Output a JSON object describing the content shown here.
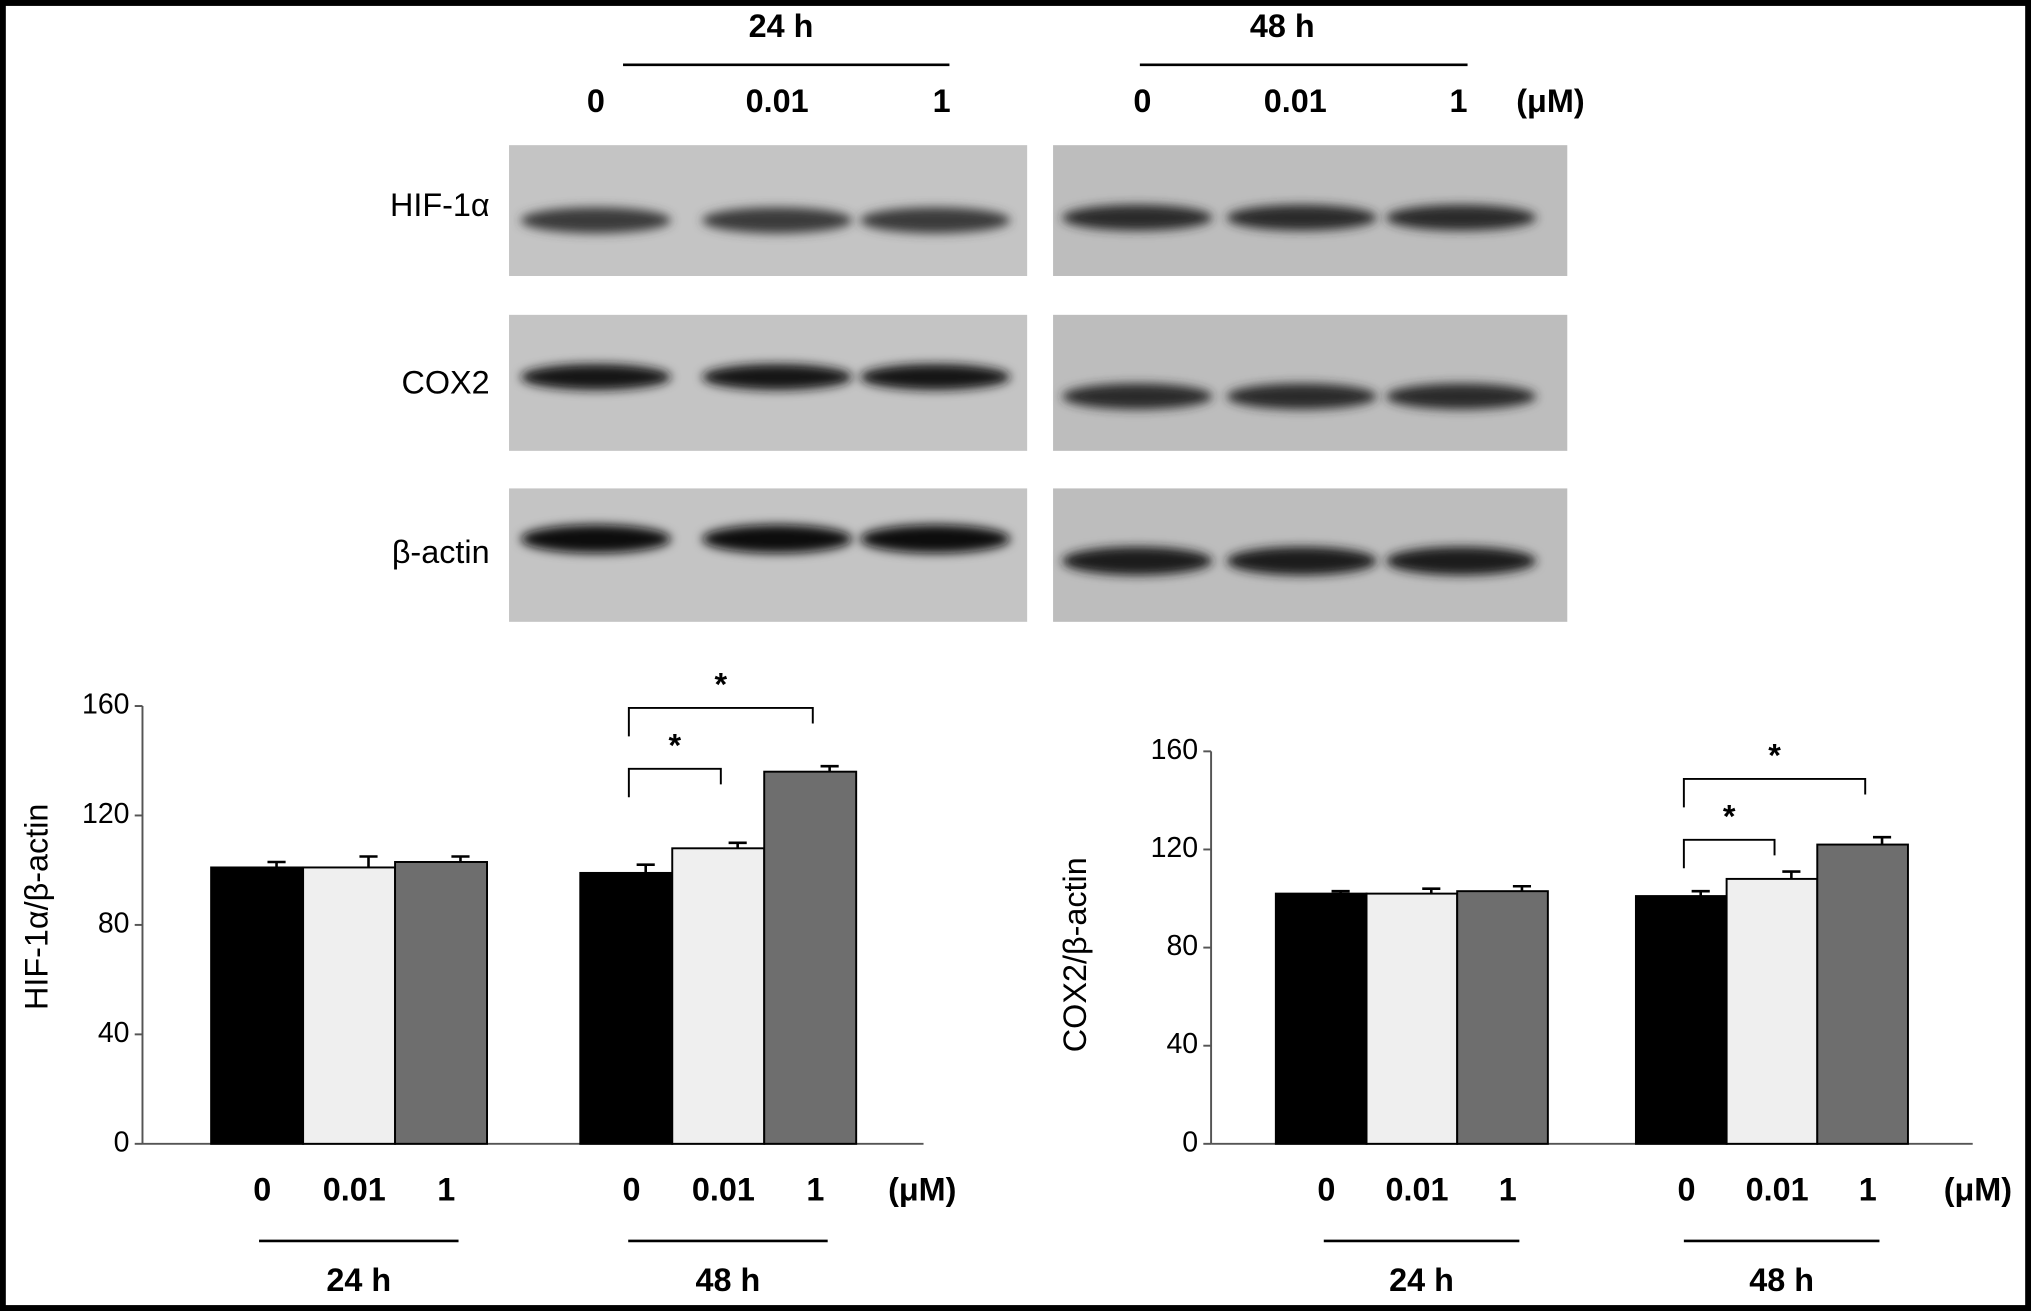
{
  "blot": {
    "time_labels": [
      "24 h",
      "48 h"
    ],
    "doses": [
      "0",
      "0.01",
      "1",
      "0",
      "0.01",
      "1"
    ],
    "unit": "(μM)",
    "rows": [
      "HIF-1α",
      "COX2",
      "β-actin"
    ]
  },
  "chart_data": [
    {
      "type": "bar",
      "ylabel": "HIF-1α/β-actin",
      "categories": [
        "0",
        "0.01",
        "1",
        "0",
        "0.01",
        "1"
      ],
      "groups": [
        "24 h",
        "48 h"
      ],
      "unit": "(μM)",
      "values": [
        101,
        101,
        103,
        99,
        108,
        136
      ],
      "errors": [
        2,
        4,
        2,
        3,
        2,
        2
      ],
      "colors": [
        "#000000",
        "#efefef",
        "#6e6e6e",
        "#000000",
        "#efefef",
        "#6e6e6e"
      ],
      "ylim": [
        0,
        160
      ],
      "yticks": [
        0,
        40,
        80,
        120,
        160
      ],
      "annotations": [
        "*",
        "*"
      ]
    },
    {
      "type": "bar",
      "ylabel": "COX2/β-actin",
      "categories": [
        "0",
        "0.01",
        "1",
        "0",
        "0.01",
        "1"
      ],
      "groups": [
        "24 h",
        "48 h"
      ],
      "unit": "(μM)",
      "values": [
        102,
        102,
        103,
        101,
        108,
        122
      ],
      "errors": [
        1,
        2,
        2,
        2,
        3,
        3
      ],
      "colors": [
        "#000000",
        "#efefef",
        "#6e6e6e",
        "#000000",
        "#efefef",
        "#6e6e6e"
      ],
      "ylim": [
        0,
        160
      ],
      "yticks": [
        0,
        40,
        80,
        120,
        160
      ],
      "annotations": [
        "*",
        "*"
      ]
    }
  ]
}
